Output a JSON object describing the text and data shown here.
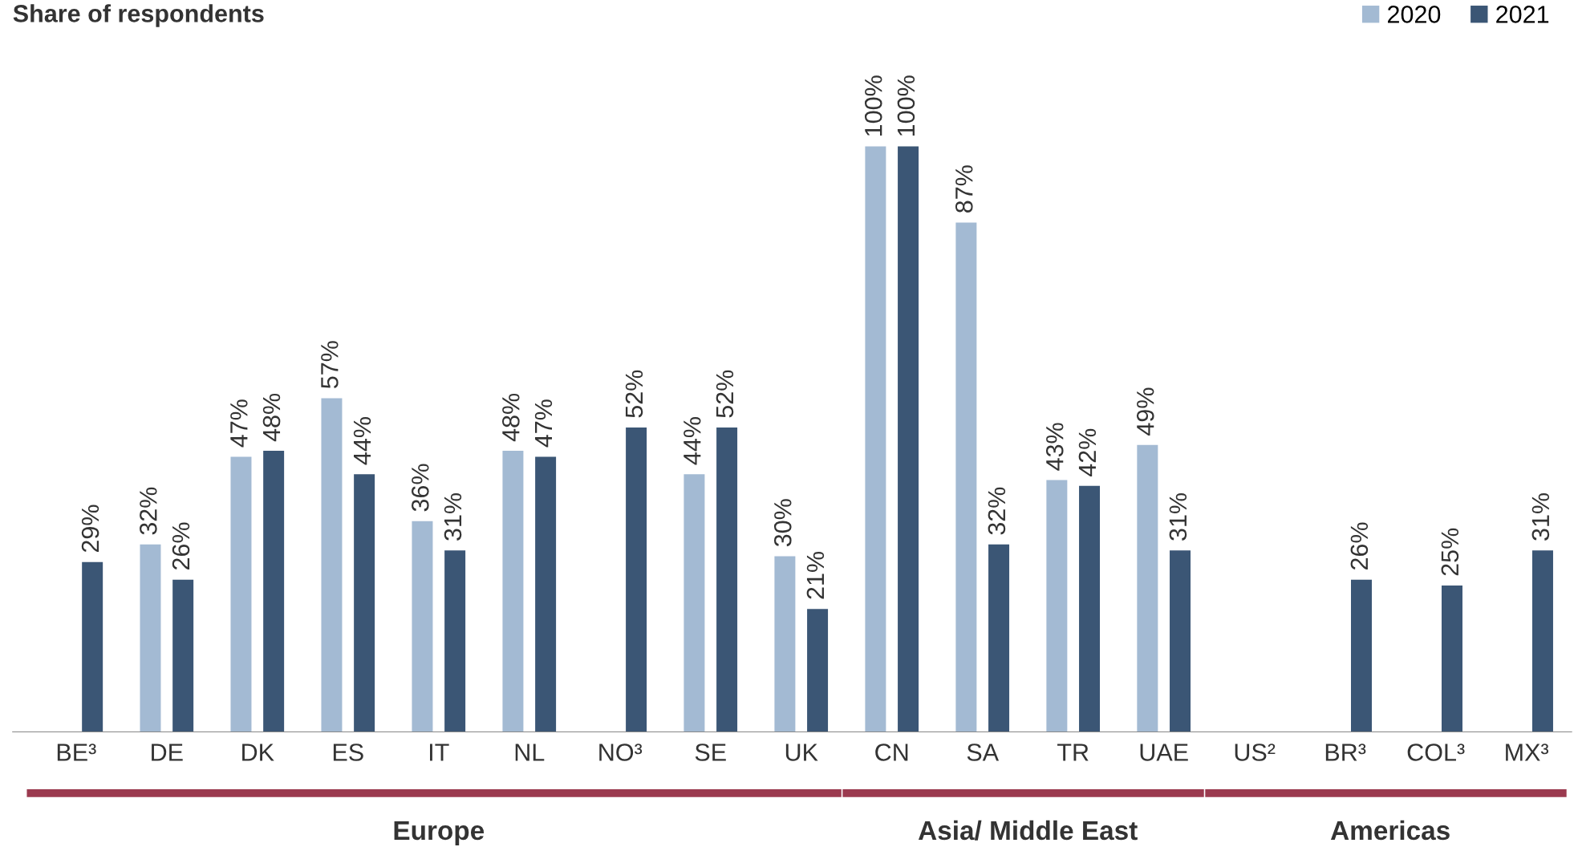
{
  "chart_data": {
    "type": "bar",
    "title": "Share of respondents",
    "categories": [
      "BE³",
      "DE",
      "DK",
      "ES",
      "IT",
      "NL",
      "NO³",
      "SE",
      "UK",
      "CN",
      "SA",
      "TR",
      "UAE",
      "US²",
      "BR³",
      "COL³",
      "MX³"
    ],
    "series": [
      {
        "name": "2020",
        "color": "#a3bad3",
        "values": [
          null,
          32,
          47,
          57,
          36,
          48,
          null,
          44,
          30,
          100,
          87,
          43,
          49,
          null,
          null,
          null,
          null
        ],
        "value_labels": [
          null,
          "32%",
          "47%",
          "57%",
          "36%",
          "48%",
          null,
          "44%",
          "30%",
          "100%",
          "87%",
          "43%",
          "49%",
          null,
          null,
          null,
          null
        ]
      },
      {
        "name": "2021",
        "color": "#3b5675",
        "values": [
          29,
          26,
          48,
          44,
          31,
          47,
          52,
          52,
          21,
          100,
          32,
          42,
          31,
          null,
          26,
          25,
          31
        ],
        "value_labels": [
          "29%",
          "26%",
          "48%",
          "44%",
          "31%",
          "47%",
          "52%",
          "52%",
          "21%",
          "100%",
          "32%",
          "42%",
          "31%",
          null,
          "26%",
          "25%",
          "31%"
        ]
      }
    ],
    "annotations": [
      "Europe",
      "Asia/ Middle East",
      "Americas"
    ],
    "legend": "top right",
    "grid": false,
    "tick_labels": "x"
  }
}
